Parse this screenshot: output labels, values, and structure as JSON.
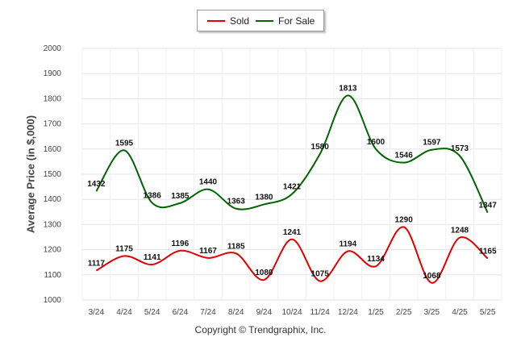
{
  "chart_data": {
    "type": "line",
    "categories": [
      "3/24",
      "4/24",
      "5/24",
      "6/24",
      "7/24",
      "8/24",
      "9/24",
      "10/24",
      "11/24",
      "12/24",
      "1/25",
      "2/25",
      "3/25",
      "4/25",
      "5/25"
    ],
    "series": [
      {
        "name": "Sold",
        "color": "#e00000",
        "values": [
          1117,
          1175,
          1141,
          1196,
          1167,
          1185,
          1080,
          1241,
          1075,
          1194,
          1134,
          1290,
          1068,
          1248,
          1165
        ]
      },
      {
        "name": "For Sale",
        "color": "#006400",
        "values": [
          1432,
          1595,
          1386,
          1385,
          1440,
          1363,
          1380,
          1421,
          1580,
          1813,
          1600,
          1546,
          1597,
          1573,
          1347
        ]
      }
    ],
    "ylabel": "Average Price (in $,000)",
    "ylim": [
      1000,
      2000
    ],
    "yticks": [
      1000,
      1100,
      1200,
      1300,
      1400,
      1500,
      1600,
      1700,
      1800,
      1900,
      2000
    ],
    "grid": true,
    "legend_position": "top-center"
  },
  "legend": {
    "sold_label": "Sold",
    "for_sale_label": "For Sale"
  },
  "credit": "Copyright © Trendgraphix, Inc."
}
